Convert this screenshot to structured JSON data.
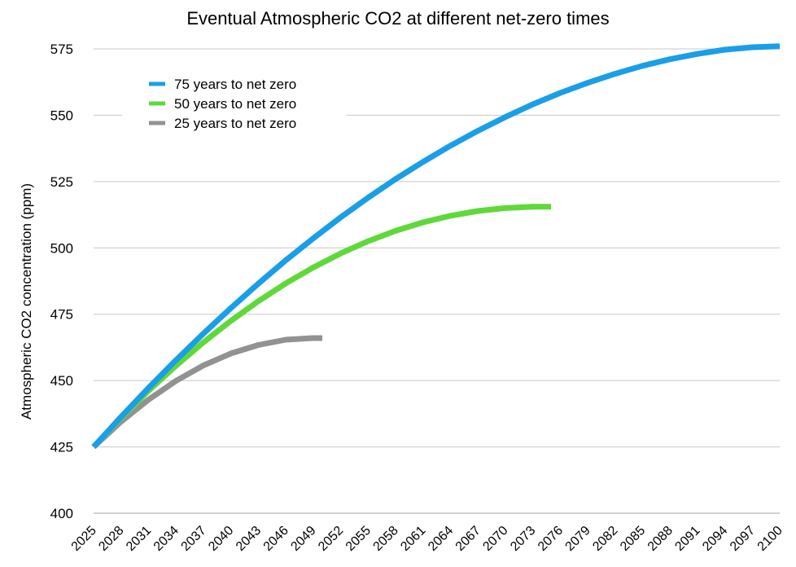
{
  "chart_data": {
    "type": "line",
    "title": "Eventual Atmospheric CO2 at different net-zero times",
    "xlabel": "",
    "ylabel": "Atmospheric CO2 concentration (ppm)",
    "ylim": [
      400,
      575
    ],
    "yticks": [
      400,
      425,
      450,
      475,
      500,
      525,
      550,
      575
    ],
    "xlim": [
      2025,
      2100
    ],
    "xticks": [
      2025,
      2028,
      2031,
      2034,
      2037,
      2040,
      2043,
      2046,
      2049,
      2052,
      2055,
      2058,
      2061,
      2064,
      2067,
      2070,
      2073,
      2076,
      2079,
      2082,
      2085,
      2088,
      2091,
      2094,
      2097,
      2100
    ],
    "grid": true,
    "legend_position": "top-left",
    "series": [
      {
        "name": "75 years to net zero",
        "color": "#1a9ee8",
        "x": [
          2025,
          2028,
          2031,
          2034,
          2037,
          2040,
          2043,
          2046,
          2049,
          2052,
          2055,
          2058,
          2061,
          2064,
          2067,
          2070,
          2073,
          2076,
          2079,
          2082,
          2085,
          2088,
          2091,
          2094,
          2097,
          2100
        ],
        "values": [
          425,
          436.3,
          447.2,
          457.7,
          467.7,
          477.3,
          486.5,
          495.3,
          503.6,
          511.5,
          518.9,
          525.9,
          532.4,
          538.5,
          544.1,
          549.3,
          554.1,
          558.4,
          562.2,
          565.6,
          568.6,
          571.1,
          573.1,
          574.7,
          575.6,
          576
        ]
      },
      {
        "name": "50 years to net zero",
        "color": "#5fd93a",
        "x": [
          2025,
          2028,
          2031,
          2034,
          2037,
          2040,
          2043,
          2046,
          2049,
          2052,
          2055,
          2058,
          2061,
          2064,
          2067,
          2070,
          2073,
          2075
        ],
        "values": [
          425,
          435.9,
          446.1,
          455.6,
          464.4,
          472.5,
          479.9,
          486.6,
          492.6,
          497.9,
          502.5,
          506.4,
          509.6,
          512.1,
          513.9,
          515,
          515.5,
          515.5
        ]
      },
      {
        "name": "25 years to net zero",
        "color": "#929292",
        "x": [
          2025,
          2028,
          2031,
          2034,
          2037,
          2040,
          2043,
          2046,
          2049,
          2050
        ],
        "values": [
          425,
          434.5,
          442.8,
          449.9,
          455.7,
          460.2,
          463.4,
          465.4,
          466,
          466
        ]
      }
    ]
  }
}
